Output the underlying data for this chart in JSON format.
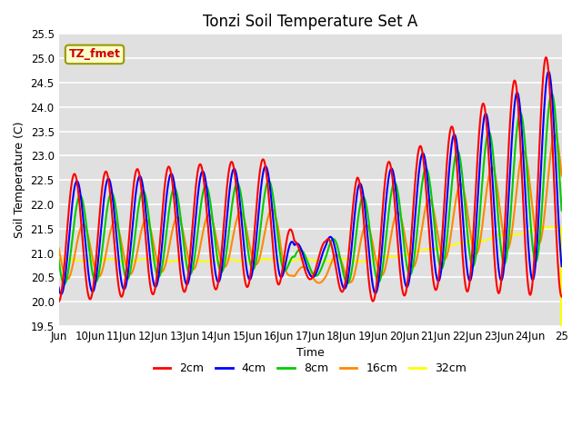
{
  "title": "Tonzi Soil Temperature Set A",
  "xlabel": "Time",
  "ylabel": "Soil Temperature (C)",
  "annotation": "TZ_fmet",
  "annotation_bg": "#ffffcc",
  "annotation_border": "#999900",
  "annotation_text_color": "#cc0000",
  "ylim": [
    19.5,
    25.5
  ],
  "yticks": [
    19.5,
    20.0,
    20.5,
    21.0,
    21.5,
    22.0,
    22.5,
    23.0,
    23.5,
    24.0,
    24.5,
    25.0,
    25.5
  ],
  "xtick_labels": [
    "Jun",
    "10Jun",
    "11Jun",
    "12Jun",
    "13Jun",
    "14Jun",
    "15Jun",
    "16Jun",
    "17Jun",
    "18Jun",
    "19Jun",
    "20Jun",
    "21Jun",
    "22Jun",
    "23Jun",
    "24Jun",
    "25"
  ],
  "line_colors": {
    "2cm": "#ff0000",
    "4cm": "#0000ff",
    "8cm": "#00cc00",
    "16cm": "#ff8800",
    "32cm": "#ffff00"
  },
  "line_widths": {
    "2cm": 1.5,
    "4cm": 1.5,
    "8cm": 1.5,
    "16cm": 1.5,
    "32cm": 1.5
  },
  "bg_color": "#e0e0e0",
  "grid_color": "#ffffff",
  "title_fontsize": 12,
  "label_fontsize": 9,
  "tick_fontsize": 8.5
}
